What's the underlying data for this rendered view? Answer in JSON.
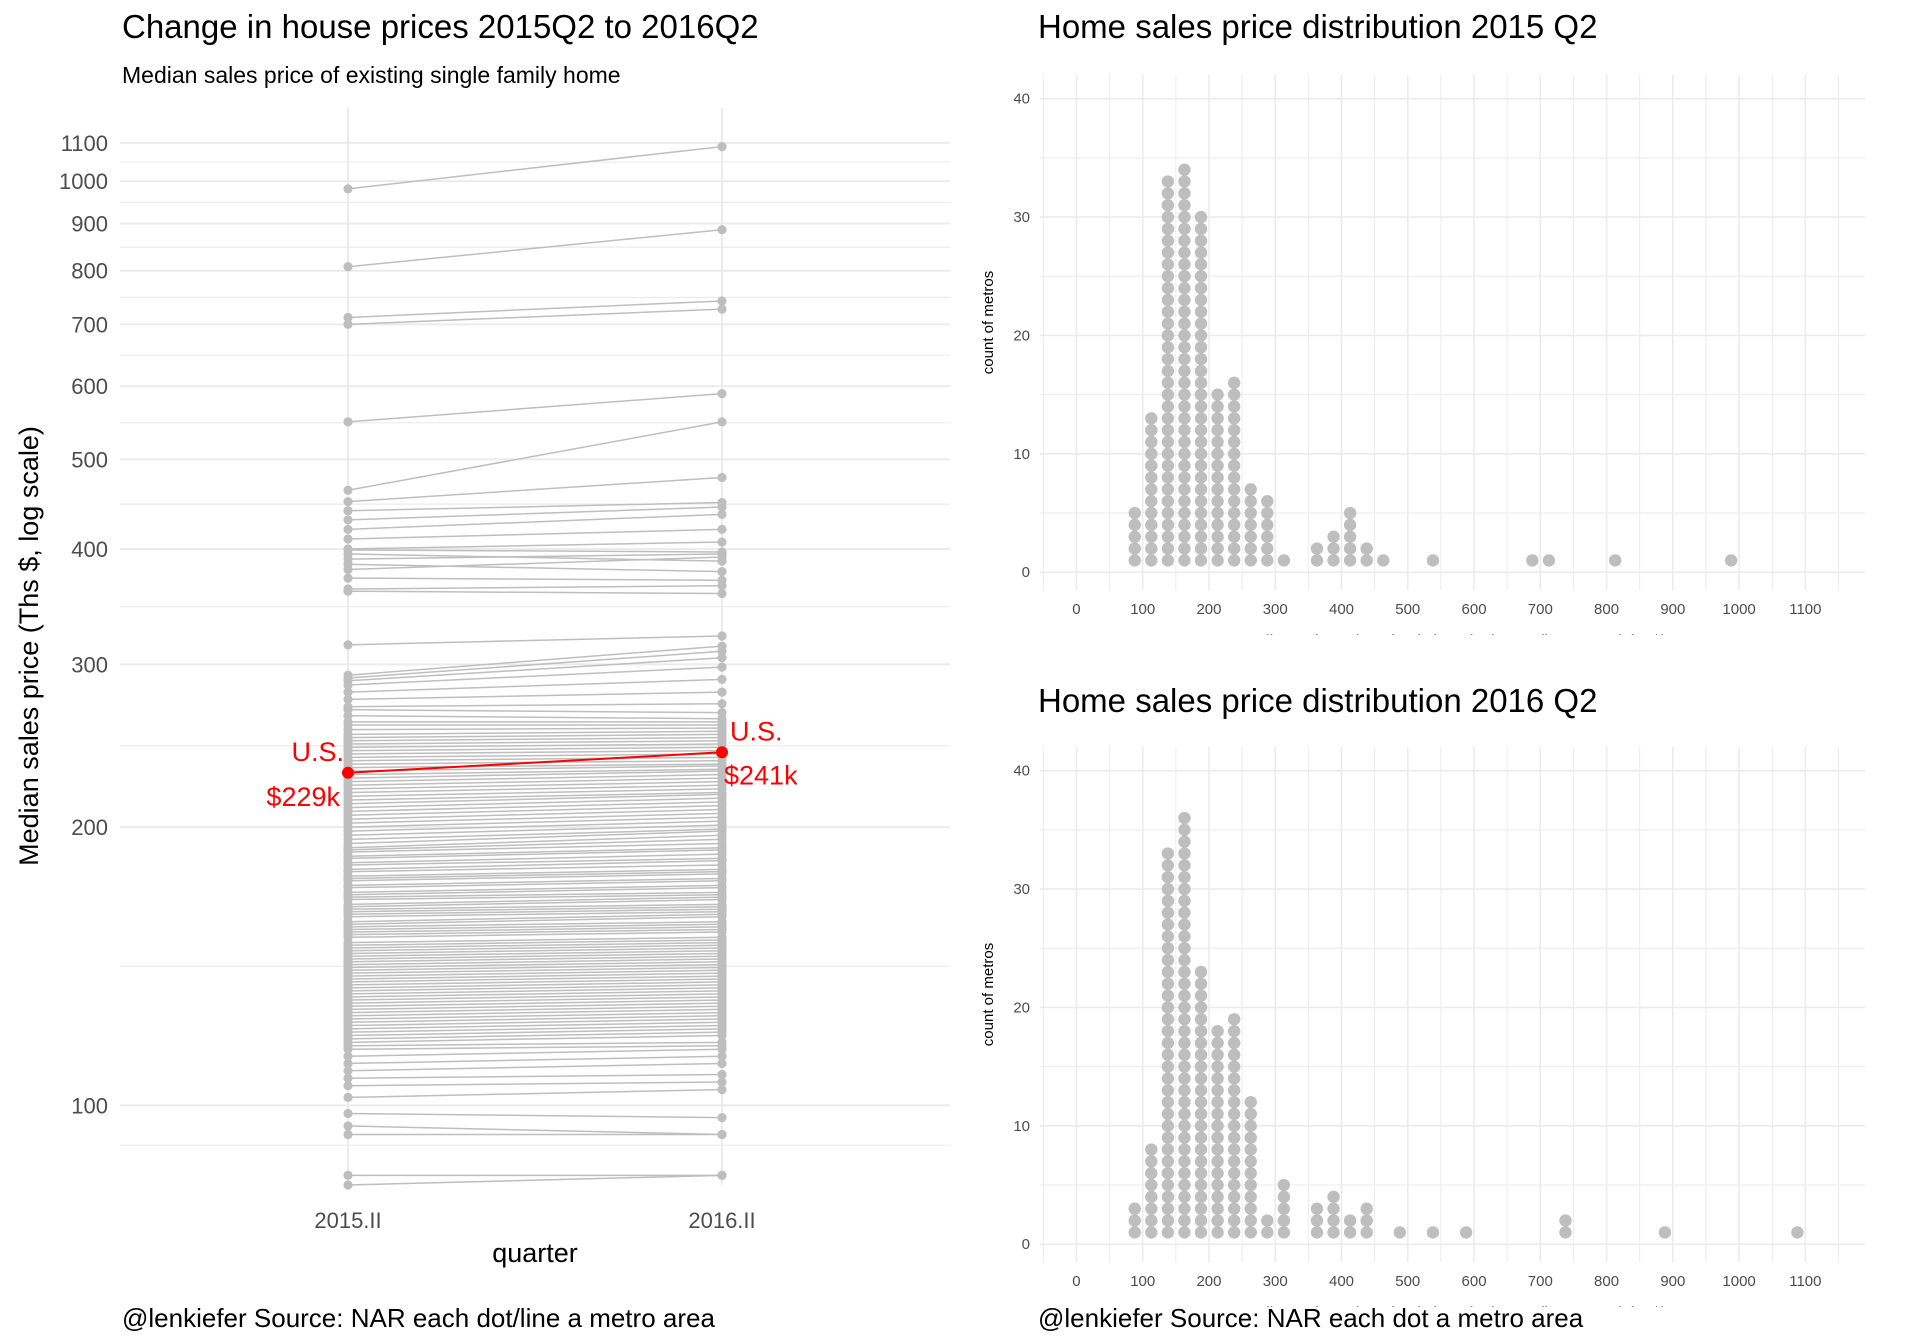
{
  "left": {
    "title": "Change in house prices 2015Q2 to 2016Q2",
    "subtitle": "Median sales price of existing single family home",
    "caption": "@lenkiefer Source: NAR each dot/line a metro area"
  },
  "right": {
    "caption": "@lenkiefer Source: NAR each dot a metro area"
  },
  "colors": {
    "metro": "#bebebe",
    "us": "#ff0000",
    "grid": "#ebebeb",
    "axis_text": "#4d4d4d"
  },
  "chart_data": [
    {
      "type": "line",
      "subtype": "slopegraph",
      "title": "Change in house prices 2015Q2 to 2016Q2",
      "subtitle": "Median sales price of existing single family home",
      "xlabel": "quarter",
      "ylabel": "Median sales price (Ths $, log scale)",
      "y_scale": "log",
      "ylim": [
        82,
        1200
      ],
      "categories": [
        "2015.II",
        "2016.II"
      ],
      "y_ticks": [
        100,
        200,
        300,
        400,
        500,
        600,
        700,
        800,
        900,
        1000,
        1100
      ],
      "highlight": {
        "name": "U.S.",
        "values": [
          229,
          241
        ],
        "labels": [
          "$229k",
          "$241k"
        ],
        "color": "#ff0000"
      },
      "series_note": "each dot/line a metro area",
      "pairs": [
        [
          981,
          1090
        ],
        [
          808,
          886
        ],
        [
          712,
          742
        ],
        [
          700,
          727
        ],
        [
          549,
          589
        ],
        [
          463,
          549
        ],
        [
          450,
          478
        ],
        [
          440,
          449
        ],
        [
          430,
          444
        ],
        [
          420,
          436
        ],
        [
          410,
          420
        ],
        [
          400,
          407
        ],
        [
          399,
          397
        ],
        [
          395,
          388
        ],
        [
          390,
          395
        ],
        [
          385,
          378
        ],
        [
          380,
          392
        ],
        [
          372,
          370
        ],
        [
          362,
          365
        ],
        [
          360,
          358
        ],
        [
          315,
          322
        ],
        [
          292,
          314
        ],
        [
          290,
          310
        ],
        [
          288,
          305
        ],
        [
          285,
          298
        ],
        [
          280,
          289
        ],
        [
          275,
          280
        ],
        [
          270,
          272
        ],
        [
          268,
          266
        ],
        [
          264,
          262
        ],
        [
          260,
          260
        ],
        [
          258,
          258
        ],
        [
          255,
          256
        ],
        [
          252,
          254
        ],
        [
          250,
          252
        ],
        [
          248,
          250
        ],
        [
          246,
          248
        ],
        [
          244,
          246
        ],
        [
          242,
          244
        ],
        [
          240,
          242
        ],
        [
          238,
          240
        ],
        [
          236,
          238
        ],
        [
          234,
          236
        ],
        [
          232,
          234
        ],
        [
          230,
          233
        ],
        [
          228,
          231
        ],
        [
          226,
          230
        ],
        [
          224,
          228
        ],
        [
          222,
          226
        ],
        [
          220,
          224
        ],
        [
          218,
          222
        ],
        [
          216,
          220
        ],
        [
          214,
          218
        ],
        [
          212,
          217
        ],
        [
          210,
          215
        ],
        [
          208,
          213
        ],
        [
          206,
          211
        ],
        [
          204,
          209
        ],
        [
          202,
          207
        ],
        [
          200,
          205
        ],
        [
          198,
          203
        ],
        [
          196,
          201
        ],
        [
          194,
          199
        ],
        [
          192,
          198
        ],
        [
          190,
          196
        ],
        [
          189,
          194
        ],
        [
          188,
          192
        ],
        [
          186,
          190
        ],
        [
          185,
          189
        ],
        [
          183,
          187
        ],
        [
          182,
          185
        ],
        [
          180,
          184
        ],
        [
          179,
          182
        ],
        [
          177,
          180
        ],
        [
          176,
          179
        ],
        [
          175,
          178
        ],
        [
          173,
          176
        ],
        [
          172,
          175
        ],
        [
          170,
          173
        ],
        [
          169,
          172
        ],
        [
          168,
          170
        ],
        [
          167,
          169
        ],
        [
          165,
          168
        ],
        [
          164,
          167
        ],
        [
          163,
          165
        ],
        [
          162,
          164
        ],
        [
          161,
          163
        ],
        [
          160,
          162
        ],
        [
          158,
          161
        ],
        [
          157,
          160
        ],
        [
          156,
          158
        ],
        [
          155,
          157
        ],
        [
          154,
          156
        ],
        [
          153,
          155
        ],
        [
          152,
          154
        ],
        [
          150,
          152
        ],
        [
          149,
          151
        ],
        [
          148,
          150
        ],
        [
          147,
          149
        ],
        [
          146,
          148
        ],
        [
          145,
          147
        ],
        [
          144,
          146
        ],
        [
          143,
          145
        ],
        [
          142,
          144
        ],
        [
          141,
          143
        ],
        [
          140,
          142
        ],
        [
          139,
          141
        ],
        [
          138,
          140
        ],
        [
          137,
          139
        ],
        [
          136,
          138
        ],
        [
          135,
          137
        ],
        [
          134,
          136
        ],
        [
          133,
          135
        ],
        [
          132,
          134
        ],
        [
          131,
          133
        ],
        [
          130,
          132
        ],
        [
          129,
          131
        ],
        [
          128,
          130
        ],
        [
          127,
          129
        ],
        [
          126,
          128
        ],
        [
          125,
          127
        ],
        [
          124,
          126
        ],
        [
          123,
          125
        ],
        [
          122,
          124
        ],
        [
          121,
          123
        ],
        [
          120,
          122
        ],
        [
          119,
          121
        ],
        [
          118,
          120
        ],
        [
          117,
          119
        ],
        [
          116,
          117
        ],
        [
          115,
          116
        ],
        [
          113,
          115
        ],
        [
          111,
          113
        ],
        [
          109,
          111
        ],
        [
          107,
          108
        ],
        [
          105,
          106
        ],
        [
          102,
          104
        ],
        [
          98,
          97
        ],
        [
          95,
          93
        ],
        [
          93,
          93
        ],
        [
          84,
          84
        ],
        [
          82,
          84
        ]
      ]
    },
    {
      "type": "scatter",
      "subtype": "dotplot",
      "title": "Home sales price distribution 2015 Q2",
      "xlabel": "Median Sales Price of Existing Single-Family Homes (Ths $)",
      "ylabel": "count of metros",
      "xlim": [
        -55,
        1190
      ],
      "ylim": [
        -1.5,
        42
      ],
      "x_ticks": [
        0,
        100,
        200,
        300,
        400,
        500,
        600,
        700,
        800,
        900,
        1000,
        1100
      ],
      "y_ticks": [
        0,
        10,
        20,
        30,
        40
      ],
      "bins": [
        {
          "x": 88,
          "count": 5
        },
        {
          "x": 113,
          "count": 13
        },
        {
          "x": 138,
          "count": 33
        },
        {
          "x": 163,
          "count": 34
        },
        {
          "x": 188,
          "count": 30
        },
        {
          "x": 213,
          "count": 15
        },
        {
          "x": 238,
          "count": 16
        },
        {
          "x": 263,
          "count": 7
        },
        {
          "x": 288,
          "count": 6
        },
        {
          "x": 313,
          "count": 1
        },
        {
          "x": 363,
          "count": 2
        },
        {
          "x": 388,
          "count": 3
        },
        {
          "x": 413,
          "count": 5
        },
        {
          "x": 438,
          "count": 2
        },
        {
          "x": 463,
          "count": 1
        },
        {
          "x": 538,
          "count": 1
        },
        {
          "x": 688,
          "count": 1
        },
        {
          "x": 713,
          "count": 1
        },
        {
          "x": 813,
          "count": 1
        },
        {
          "x": 988,
          "count": 1
        }
      ]
    },
    {
      "type": "scatter",
      "subtype": "dotplot",
      "title": "Home sales price distribution 2016 Q2",
      "xlabel": "Median Sales Price of Existing Single-Family Homes (Ths $)",
      "ylabel": "count of metros",
      "xlim": [
        -55,
        1190
      ],
      "ylim": [
        -1.5,
        42
      ],
      "x_ticks": [
        0,
        100,
        200,
        300,
        400,
        500,
        600,
        700,
        800,
        900,
        1000,
        1100
      ],
      "y_ticks": [
        0,
        10,
        20,
        30,
        40
      ],
      "bins": [
        {
          "x": 88,
          "count": 3
        },
        {
          "x": 113,
          "count": 8
        },
        {
          "x": 138,
          "count": 33
        },
        {
          "x": 163,
          "count": 36
        },
        {
          "x": 188,
          "count": 23
        },
        {
          "x": 213,
          "count": 18
        },
        {
          "x": 238,
          "count": 19
        },
        {
          "x": 263,
          "count": 12
        },
        {
          "x": 288,
          "count": 2
        },
        {
          "x": 313,
          "count": 5
        },
        {
          "x": 363,
          "count": 3
        },
        {
          "x": 388,
          "count": 4
        },
        {
          "x": 413,
          "count": 2
        },
        {
          "x": 438,
          "count": 3
        },
        {
          "x": 488,
          "count": 1
        },
        {
          "x": 538,
          "count": 1
        },
        {
          "x": 588,
          "count": 1
        },
        {
          "x": 738,
          "count": 2
        },
        {
          "x": 888,
          "count": 1
        },
        {
          "x": 1088,
          "count": 1
        }
      ]
    }
  ]
}
